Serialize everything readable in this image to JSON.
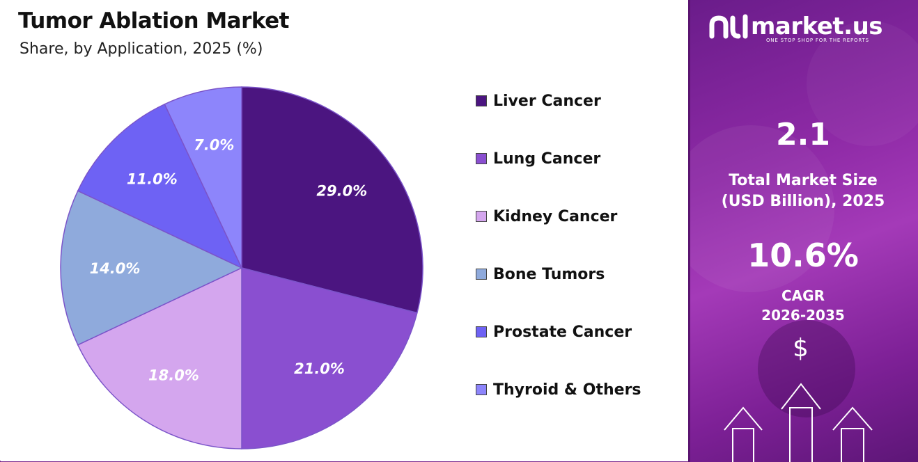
{
  "header": {
    "title": "Tumor Ablation Market",
    "subtitle": "Share, by Application, 2025 (%)"
  },
  "chart_data": {
    "type": "pie",
    "title": "Tumor Ablation Market",
    "subtitle": "Share, by Application, 2025 (%)",
    "categories": [
      "Liver Cancer",
      "Lung Cancer",
      "Kidney Cancer",
      "Bone Tumors",
      "Prostate Cancer",
      "Thyroid & Others"
    ],
    "values": [
      29.0,
      21.0,
      18.0,
      14.0,
      11.0,
      7.0
    ],
    "labels": [
      "29.0%",
      "21.0%",
      "18.0%",
      "14.0%",
      "11.0%",
      "7.0%"
    ],
    "colors": [
      "#4b1580",
      "#8a4fd0",
      "#d4a6ee",
      "#8faadc",
      "#6e62f4",
      "#8d85fb"
    ],
    "start_angle": "top (12 o'clock)",
    "direction": "clockwise",
    "legend_position": "right"
  },
  "sidebar": {
    "brand": "market.us",
    "tagline": "ONE STOP SHOP FOR THE REPORTS",
    "market_size": "2.1",
    "market_size_label_line1": "Total Market Size",
    "market_size_label_line2": "(USD Billion), 2025",
    "cagr": "10.6%",
    "cagr_label_line1": "CAGR",
    "cagr_label_line2": "2026-2035",
    "dollar": "$",
    "background_color": "#8e2aa6",
    "icons": [
      "logo-icon",
      "dollar-icon",
      "up-arrow-icon"
    ]
  }
}
